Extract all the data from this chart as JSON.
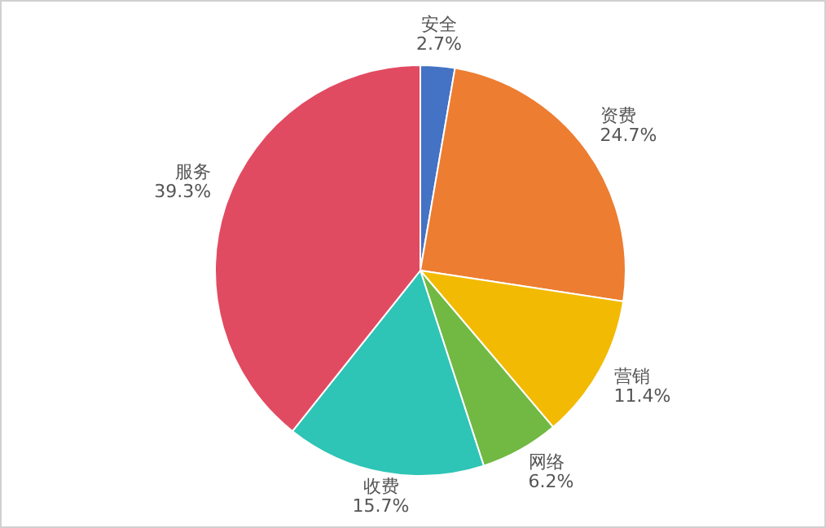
{
  "chart_data": {
    "type": "pie",
    "categories": [
      "安全",
      "资费",
      "营销",
      "网络",
      "收费",
      "服务"
    ],
    "values": [
      2.7,
      24.7,
      11.4,
      6.2,
      15.7,
      39.3
    ],
    "value_labels": [
      "2.7%",
      "24.7%",
      "11.4%",
      "6.2%",
      "15.7%",
      "39.3%"
    ],
    "colors": [
      "#4472c4",
      "#ed7d31",
      "#f2ba02",
      "#71b943",
      "#2ec4b6",
      "#e14b61"
    ],
    "legend": false
  }
}
